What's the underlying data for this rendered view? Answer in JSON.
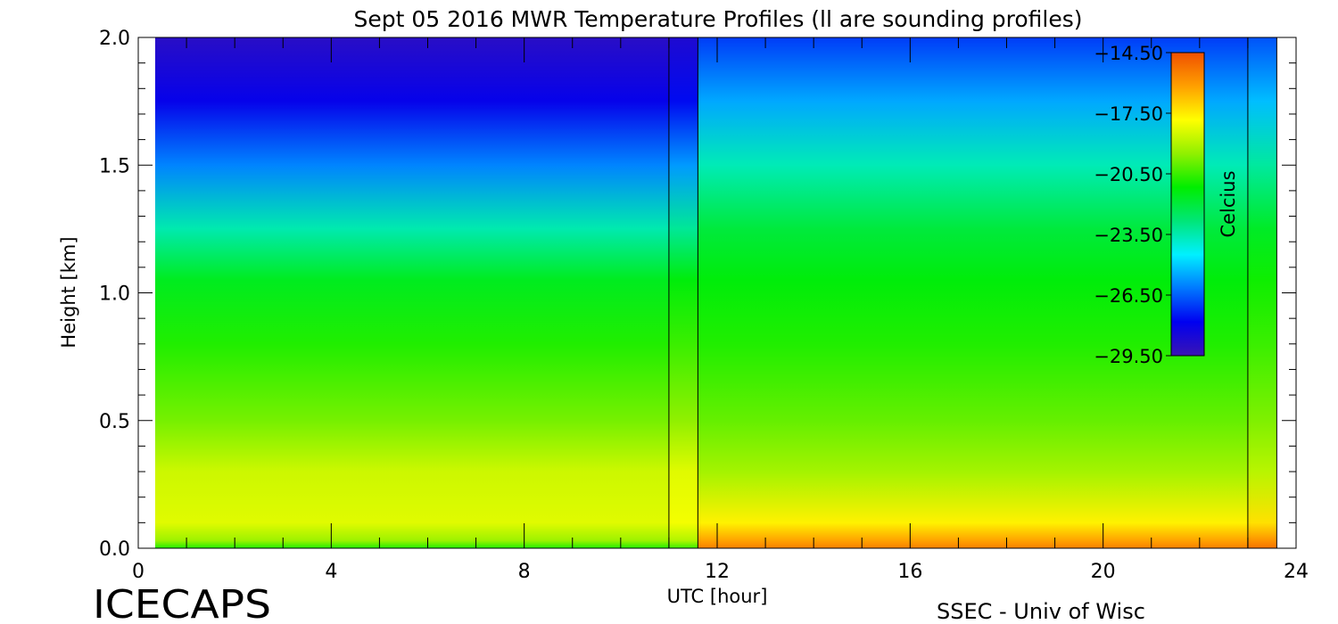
{
  "chart_data": {
    "type": "heatmap",
    "title": "Sept 05 2016 MWR Temperature Profiles (ll are sounding profiles)",
    "xlabel": "UTC [hour]",
    "ylabel": "Height [km]",
    "xlim": [
      0,
      24
    ],
    "ylim": [
      0,
      2
    ],
    "x_ticks": [
      "0",
      "4",
      "8",
      "12",
      "16",
      "20",
      "24"
    ],
    "y_ticks": [
      "0.0",
      "0.5",
      "1.0",
      "1.5",
      "2.0"
    ],
    "sounding_times": [
      11.0,
      11.6,
      23.0,
      23.6
    ],
    "data_start_hour": 0.35,
    "colorbar": {
      "label": "Celcius",
      "min": -29.5,
      "max": -14.5,
      "ticks": [
        "-14.50",
        "-17.50",
        "-20.50",
        "-23.50",
        "-26.50",
        "-29.50"
      ],
      "colors": [
        "#3a14b4",
        "#0000f0",
        "#0078ff",
        "#00f0ff",
        "#00e678",
        "#00ee00",
        "#90f000",
        "#ffff00",
        "#ffa000",
        "#f05000"
      ]
    },
    "profiles": [
      {
        "hour_range": [
          0.35,
          11.0
        ],
        "height_km": [
          0.0,
          0.03,
          0.1,
          0.3,
          0.5,
          0.8,
          1.05,
          1.25,
          1.5,
          1.75,
          2.0
        ],
        "temperature_c": [
          -20.8,
          -19.3,
          -18.3,
          -18.6,
          -19.8,
          -20.8,
          -21.6,
          -23.5,
          -26.0,
          -28.0,
          -29.0
        ]
      },
      {
        "hour_range": [
          11.6,
          23.0
        ],
        "height_km": [
          0.0,
          0.03,
          0.1,
          0.3,
          0.5,
          0.8,
          1.05,
          1.25,
          1.5,
          1.75,
          2.0
        ],
        "temperature_c": [
          -15.5,
          -16.2,
          -17.6,
          -19.2,
          -20.0,
          -20.8,
          -21.3,
          -22.0,
          -23.6,
          -25.5,
          -27.0
        ]
      }
    ]
  },
  "branding": {
    "project": "ICECAPS",
    "credit": "SSEC - Univ of Wisc"
  }
}
